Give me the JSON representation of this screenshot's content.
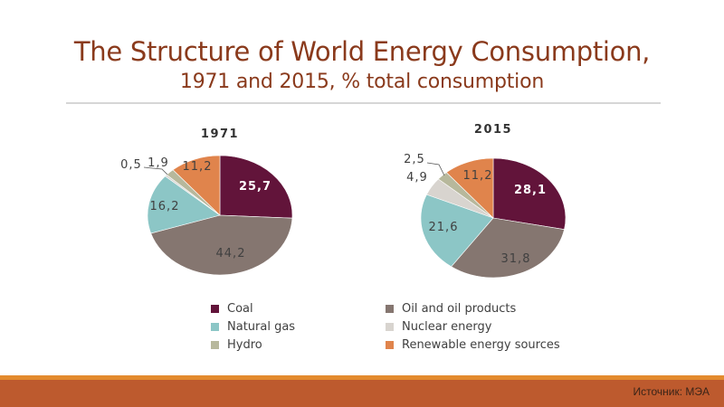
{
  "slide": {
    "title": "The Structure of World Energy Consumption,",
    "subtitle": "1971 and 2015, % total consumption",
    "source": "Источник: МЭА"
  },
  "legend": [
    {
      "label": "Coal",
      "color": "#62143a"
    },
    {
      "label": "Oil and oil products",
      "color": "#857670"
    },
    {
      "label": "Natural gas",
      "color": "#8cc6c6"
    },
    {
      "label": "Nuclear energy",
      "color": "#d8d4cf"
    },
    {
      "label": "Hydro",
      "color": "#b7b89c"
    },
    {
      "label": "Renewable energy sources",
      "color": "#e0844c"
    }
  ],
  "chart_data": [
    {
      "type": "pie",
      "title": "1971",
      "categories": [
        "Coal",
        "Oil and oil products",
        "Natural gas",
        "Nuclear energy",
        "Hydro",
        "Renewable energy sources"
      ],
      "values": [
        25.7,
        44.2,
        16.2,
        0.5,
        1.9,
        11.2
      ],
      "labels": [
        "25,7",
        "44,2",
        "16,2",
        "0,5",
        "1,9",
        "11,2"
      ],
      "start": "12 o'clock, clockwise"
    },
    {
      "type": "pie",
      "title": "2015",
      "categories": [
        "Coal",
        "Oil and oil products",
        "Natural gas",
        "Nuclear energy",
        "Hydro",
        "Renewable energy sources"
      ],
      "values": [
        28.1,
        31.8,
        21.6,
        4.9,
        2.5,
        11.2
      ],
      "labels": [
        "28,1",
        "31,8",
        "21,6",
        "4,9",
        "2,5",
        "11,2"
      ],
      "start": "12 o'clock, clockwise"
    }
  ]
}
